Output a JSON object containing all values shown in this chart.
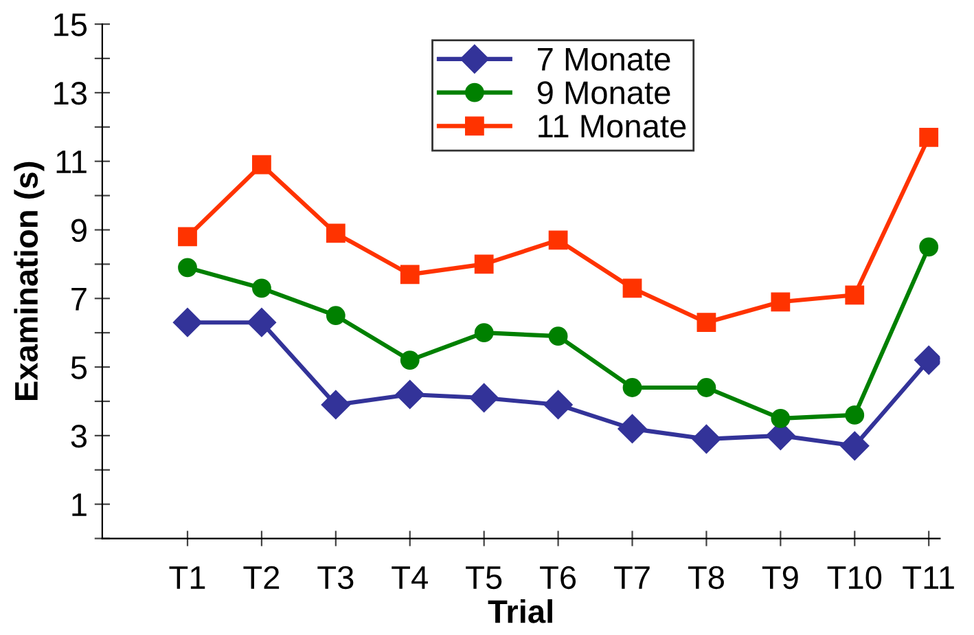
{
  "chart_data": {
    "type": "line",
    "xlabel": "Trial",
    "ylabel": "Examination (s)",
    "categories": [
      "T1",
      "T2",
      "T3",
      "T4",
      "T5",
      "T6",
      "T7",
      "T8",
      "T9",
      "T10",
      "T11"
    ],
    "series": [
      {
        "name": "7 Monate",
        "color": "#333399",
        "marker": "diamond",
        "values": [
          6.3,
          6.3,
          3.9,
          4.2,
          4.1,
          3.9,
          3.2,
          2.9,
          3.0,
          2.7,
          5.2
        ]
      },
      {
        "name": "9 Monate",
        "color": "#008000",
        "marker": "circle",
        "values": [
          7.9,
          7.3,
          6.5,
          5.2,
          6.0,
          5.9,
          4.4,
          4.4,
          3.5,
          3.6,
          8.5
        ]
      },
      {
        "name": "11 Monate",
        "color": "#ff3300",
        "marker": "square",
        "values": [
          8.8,
          10.9,
          8.9,
          7.7,
          8.0,
          8.7,
          7.3,
          6.3,
          6.9,
          7.1,
          11.7
        ]
      }
    ],
    "ylim": [
      0,
      15
    ],
    "yticks": [
      {
        "value": 0,
        "label": null
      },
      1,
      {
        "value": 2,
        "label": null
      },
      3,
      {
        "value": 4,
        "label": null
      },
      5,
      {
        "value": 6,
        "label": null
      },
      7,
      {
        "value": 8,
        "label": null
      },
      9,
      {
        "value": 10,
        "label": null
      },
      11,
      {
        "value": 12,
        "label": null
      },
      13,
      {
        "value": 14,
        "label": null
      },
      15
    ],
    "grid": false,
    "legend": "top",
    "line_style": "solid"
  }
}
